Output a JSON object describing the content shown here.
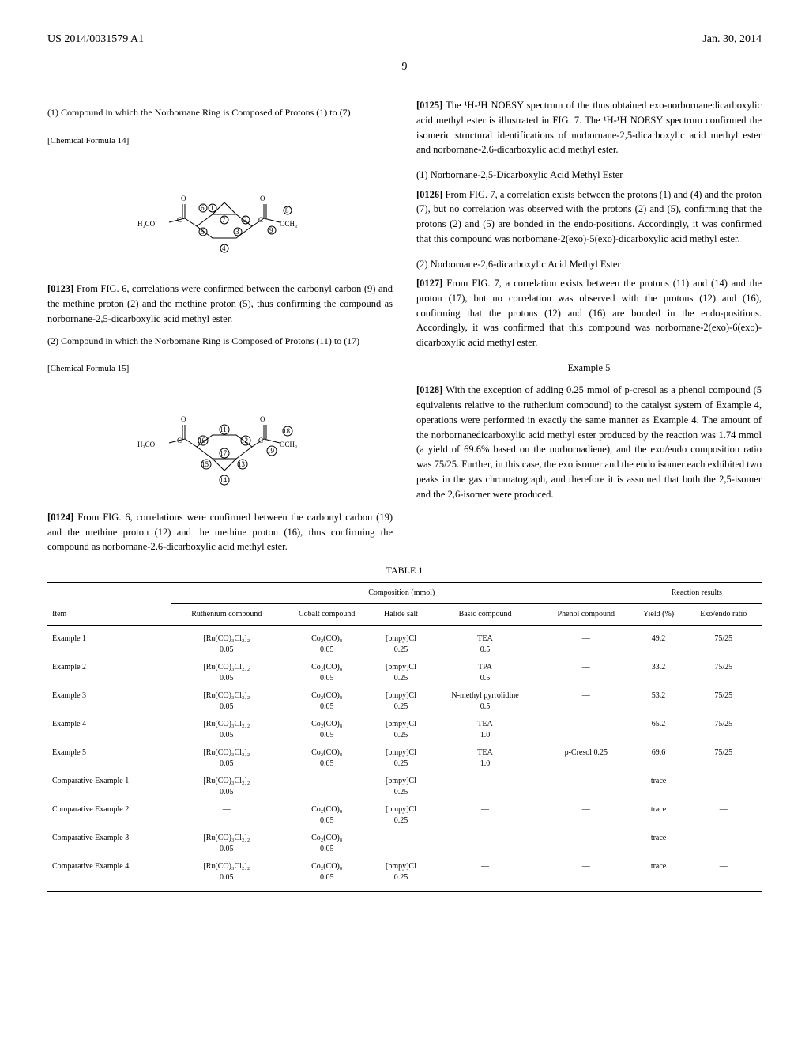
{
  "header": {
    "patent_num": "US 2014/0031579 A1",
    "date": "Jan. 30, 2014"
  },
  "page_number": "9",
  "col1": {
    "section1_title": "(1) Compound in which the Norbornane Ring is Composed of Protons (1) to (7)",
    "formula14_label": "[Chemical Formula 14]",
    "para0123_num": "[0123]",
    "para0123_text": "From FIG. 6, correlations were confirmed between the carbonyl carbon (9) and the methine proton (2) and the methine proton (5), thus confirming the compound as norbornane-2,5-dicarboxylic acid methyl ester.",
    "section2_title": "(2) Compound in which the Norbornane Ring is Composed of Protons (11) to (17)",
    "formula15_label": "[Chemical Formula 15]",
    "para0124_num": "[0124]",
    "para0124_text": "From FIG. 6, correlations were confirmed between the carbonyl carbon (19) and the methine proton (12) and the methine proton (16), thus confirming the compound as norbornane-2,6-dicarboxylic acid methyl ester."
  },
  "col2": {
    "para0125_num": "[0125]",
    "para0125_text": "The ¹H-¹H NOESY spectrum of the thus obtained exo-norbornanedicarboxylic acid methyl ester is illustrated in FIG. 7. The ¹H-¹H NOESY spectrum confirmed the isomeric structural identifications of norbornane-2,5-dicarboxylic acid methyl ester and norbornane-2,6-dicarboxylic acid methyl ester.",
    "heading1": "(1) Norbornane-2,5-Dicarboxylic Acid Methyl Ester",
    "para0126_num": "[0126]",
    "para0126_text": "From FIG. 7, a correlation exists between the protons (1) and (4) and the proton (7), but no correlation was observed with the protons (2) and (5), confirming that the protons (2) and (5) are bonded in the endo-positions. Accordingly, it was confirmed that this compound was norbornane-2(exo)-5(exo)-dicarboxylic acid methyl ester.",
    "heading2": "(2) Norbornane-2,6-dicarboxylic Acid Methyl Ester",
    "para0127_num": "[0127]",
    "para0127_text": "From FIG. 7, a correlation exists between the protons (11) and (14) and the proton (17), but no correlation was observed with the protons (12) and (16), confirming that the protons (12) and (16) are bonded in the endo-positions. Accordingly, it was confirmed that this compound was norbornane-2(exo)-6(exo)-dicarboxylic acid methyl ester.",
    "example5_title": "Example 5",
    "para0128_num": "[0128]",
    "para0128_text": "With the exception of adding 0.25 mmol of p-cresol as a phenol compound (5 equivalents relative to the ruthenium compound) to the catalyst system of Example 4, operations were performed in exactly the same manner as Example 4. The amount of the norbornanedicarboxylic acid methyl ester produced by the reaction was 1.74 mmol (a yield of 69.6% based on the norbornadiene), and the exo/endo composition ratio was 75/25. Further, in this case, the exo isomer and the endo isomer each exhibited two peaks in the gas chromatograph, and therefore it is assumed that both the 2,5-isomer and the 2,6-isomer were produced."
  },
  "table": {
    "title": "TABLE 1",
    "group_headers": {
      "item": "Item",
      "composition": "Composition (mmol)",
      "results": "Reaction results"
    },
    "sub_headers": {
      "ruthenium": "Ruthenium compound",
      "cobalt": "Cobalt compound",
      "halide": "Halide salt",
      "basic": "Basic compound",
      "phenol": "Phenol compound",
      "yield": "Yield (%)",
      "ratio": "Exo/endo ratio"
    },
    "rows": [
      {
        "item": "Example 1",
        "ru": "[Ru(CO)₃Cl₂]₂",
        "ru2": "0.05",
        "co": "Co₂(CO)₈",
        "co2": "0.05",
        "hal": "[bmpy]Cl",
        "hal2": "0.25",
        "base": "TEA",
        "base2": "0.5",
        "phe": "—",
        "yield": "49.2",
        "ratio": "75/25"
      },
      {
        "item": "Example 2",
        "ru": "[Ru(CO)₃Cl₂]₂",
        "ru2": "0.05",
        "co": "Co₂(CO)₈",
        "co2": "0.05",
        "hal": "[bmpy]Cl",
        "hal2": "0.25",
        "base": "TPA",
        "base2": "0.5",
        "phe": "—",
        "yield": "33.2",
        "ratio": "75/25"
      },
      {
        "item": "Example 3",
        "ru": "[Ru(CO)₃Cl₂]₂",
        "ru2": "0.05",
        "co": "Co₂(CO)₈",
        "co2": "0.05",
        "hal": "[bmpy]Cl",
        "hal2": "0.25",
        "base": "N-methyl pyrrolidine",
        "base2": "0.5",
        "phe": "—",
        "yield": "53.2",
        "ratio": "75/25"
      },
      {
        "item": "Example 4",
        "ru": "[Ru(CO)₃Cl₂]₂",
        "ru2": "0.05",
        "co": "Co₂(CO)₈",
        "co2": "0.05",
        "hal": "[bmpy]Cl",
        "hal2": "0.25",
        "base": "TEA",
        "base2": "1.0",
        "phe": "—",
        "yield": "65.2",
        "ratio": "75/25"
      },
      {
        "item": "Example 5",
        "ru": "[Ru(CO)₃Cl₂]₂",
        "ru2": "0.05",
        "co": "Co₂(CO)₈",
        "co2": "0.05",
        "hal": "[bmpy]Cl",
        "hal2": "0.25",
        "base": "TEA",
        "base2": "1.0",
        "phe": "p-Cresol 0.25",
        "yield": "69.6",
        "ratio": "75/25"
      },
      {
        "item": "Comparative Example 1",
        "ru": "[Ru(CO)₃Cl₂]₂",
        "ru2": "0.05",
        "co": "—",
        "co2": "",
        "hal": "[bmpy]Cl",
        "hal2": "0.25",
        "base": "—",
        "base2": "",
        "phe": "—",
        "yield": "trace",
        "ratio": "—"
      },
      {
        "item": "Comparative Example 2",
        "ru": "—",
        "ru2": "",
        "co": "Co₂(CO)₈",
        "co2": "0.05",
        "hal": "[bmpy]Cl",
        "hal2": "0.25",
        "base": "—",
        "base2": "",
        "phe": "—",
        "yield": "trace",
        "ratio": "—"
      },
      {
        "item": "Comparative Example 3",
        "ru": "[Ru(CO)₃Cl₂]₂",
        "ru2": "0.05",
        "co": "Co₂(CO)₈",
        "co2": "0.05",
        "hal": "—",
        "hal2": "",
        "base": "—",
        "base2": "",
        "phe": "—",
        "yield": "trace",
        "ratio": "—"
      },
      {
        "item": "Comparative Example 4",
        "ru": "[Ru(CO)₃Cl₂]₂",
        "ru2": "0.05",
        "co": "Co₂(CO)₈",
        "co2": "0.05",
        "hal": "[bmpy]Cl",
        "hal2": "0.25",
        "base": "—",
        "base2": "",
        "phe": "—",
        "yield": "trace",
        "ratio": "—"
      }
    ]
  }
}
